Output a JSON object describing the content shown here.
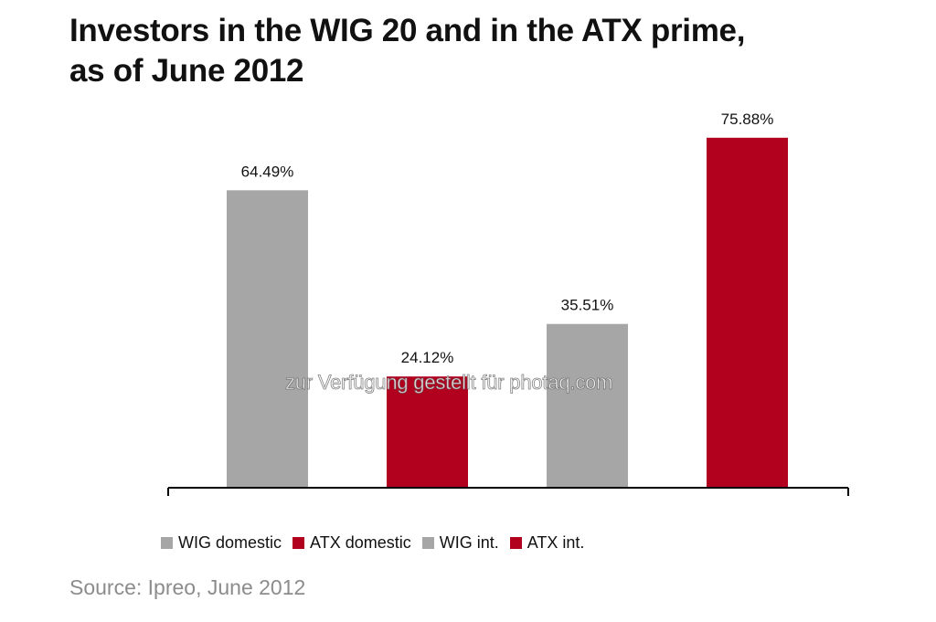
{
  "title_line1": "Investors in the WIG 20 and in the ATX prime,",
  "title_line2": "as of June 2012",
  "source": "Source: Ipreo, June 2012",
  "watermark": "zur Verfügung gestellt für photaq.com",
  "colors": {
    "wig": "#a6a6a6",
    "atx": "#b2001f",
    "axis": "#000000"
  },
  "chart_data": {
    "type": "bar",
    "categories": [
      "WIG domestic",
      "ATX domestic",
      "WIG int.",
      "ATX int."
    ],
    "values": [
      64.49,
      24.12,
      35.51,
      75.88
    ],
    "data_labels": [
      "64.49%",
      "24.12%",
      "35.51%",
      "75.88%"
    ],
    "series_colors": [
      "#a6a6a6",
      "#b2001f",
      "#a6a6a6",
      "#b2001f"
    ],
    "legend": [
      {
        "label": "WIG domestic",
        "color": "#a6a6a6"
      },
      {
        "label": "ATX domestic",
        "color": "#b2001f"
      },
      {
        "label": "WIG int.",
        "color": "#a6a6a6"
      },
      {
        "label": "ATX int.",
        "color": "#b2001f"
      }
    ],
    "legend_position": "bottom",
    "ylim": [
      0,
      80
    ],
    "grid": false,
    "y_axis_visible": false
  }
}
